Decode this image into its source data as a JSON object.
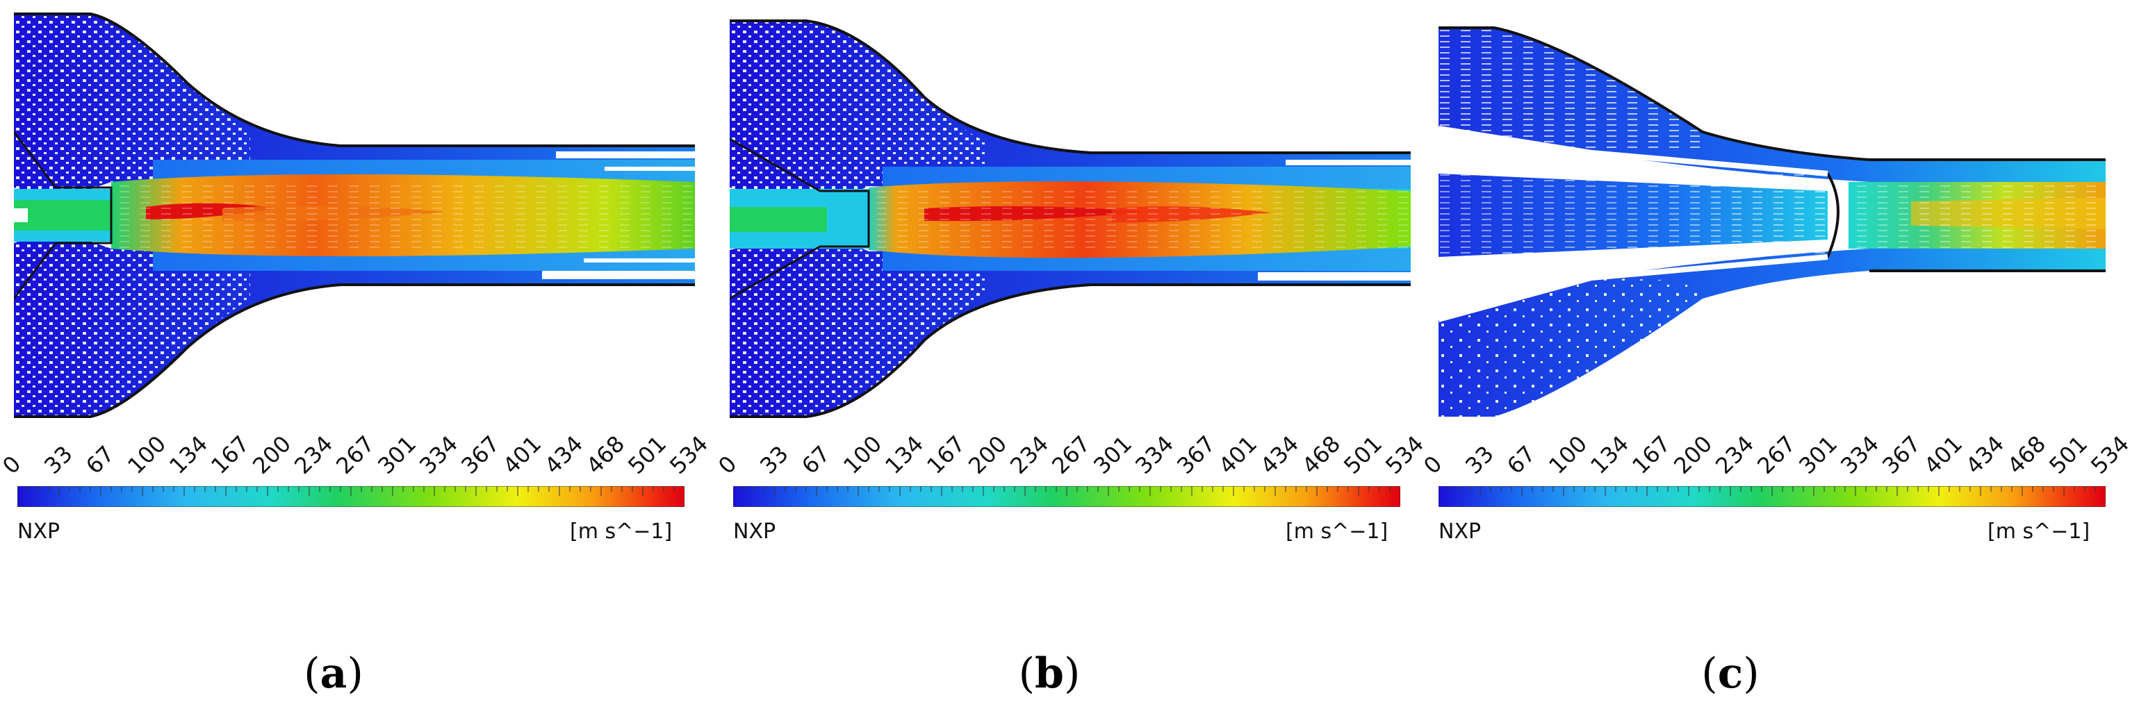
{
  "panels": [
    {
      "id": "a",
      "caption_open": "(",
      "caption_letter": "a",
      "caption_close": ")",
      "scale_name": "NXP",
      "unit": "[m s^−1]",
      "ticks": [
        "0",
        "33",
        "67",
        "100",
        "134",
        "167",
        "200",
        "234",
        "267",
        "301",
        "334",
        "367",
        "401",
        "434",
        "468",
        "501",
        "534"
      ]
    },
    {
      "id": "b",
      "caption_open": "(",
      "caption_letter": "b",
      "caption_close": ")",
      "scale_name": "NXP",
      "unit": "[m s^−1]",
      "ticks": [
        "0",
        "33",
        "67",
        "100",
        "134",
        "167",
        "200",
        "234",
        "267",
        "301",
        "334",
        "367",
        "401",
        "434",
        "468",
        "501",
        "534"
      ]
    },
    {
      "id": "c",
      "caption_open": "(",
      "caption_letter": "c",
      "caption_close": ")",
      "scale_name": "NXP",
      "unit": "[m s^−1]",
      "ticks": [
        "0",
        "33",
        "67",
        "100",
        "134",
        "167",
        "200",
        "234",
        "267",
        "301",
        "334",
        "367",
        "401",
        "434",
        "468",
        "501",
        "534"
      ]
    }
  ],
  "colormap": [
    "#1a10d8",
    "#1a6cf0",
    "#2ab8f0",
    "#20d8c8",
    "#20d060",
    "#80e010",
    "#f0f010",
    "#f8a010",
    "#f03010",
    "#e00010"
  ]
}
